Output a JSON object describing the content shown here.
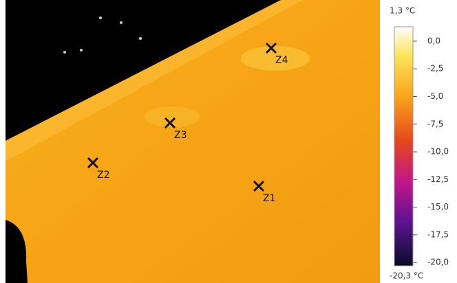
{
  "image": {
    "markers": [
      {
        "label": "Z1"
      },
      {
        "label": "Z2"
      },
      {
        "label": "Z3"
      },
      {
        "label": "Z4"
      }
    ]
  },
  "scale": {
    "max_label": "1,3 °C",
    "min_label": "-20,3 °C",
    "lim": [
      -20.3,
      1.3
    ],
    "ticks": [
      {
        "value": 0,
        "label": "0,0"
      },
      {
        "value": -2.5,
        "label": "-2,5"
      },
      {
        "value": -5,
        "label": "-5,0"
      },
      {
        "value": -7.5,
        "label": "-7,5"
      },
      {
        "value": -10,
        "label": "-10,0"
      },
      {
        "value": -12.5,
        "label": "-12,5"
      },
      {
        "value": -15,
        "label": "-15,0"
      },
      {
        "value": -17.5,
        "label": "-17,5"
      },
      {
        "value": -20,
        "label": "-20,0"
      }
    ]
  }
}
